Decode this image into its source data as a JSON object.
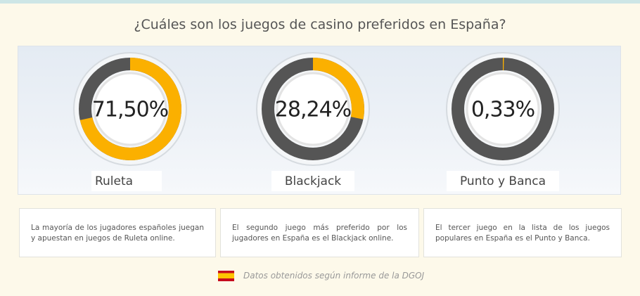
{
  "chart_data": {
    "type": "gauge",
    "title": "¿Cuáles son los juegos de casino preferidos en España?",
    "categories": [
      "Ruleta",
      "Blackjack",
      "Punto y Banca"
    ],
    "values": [
      71.5,
      28.24,
      0.33
    ],
    "value_labels": [
      "71,50%",
      "28,24%",
      "0,33%"
    ],
    "color": "#fbb000",
    "track_color": "#555555",
    "descriptions": [
      "La mayoría de los jugadores españoles juegan y apuestan en juegos de Ruleta online.",
      "El segundo juego más preferido por los jugadores en España es el Blackjack online.",
      "El tercer juego en la lista de los juegos populares en España es el Punto y Banca."
    ],
    "note": "Datos obtenidos según informe de la DGOJ"
  }
}
